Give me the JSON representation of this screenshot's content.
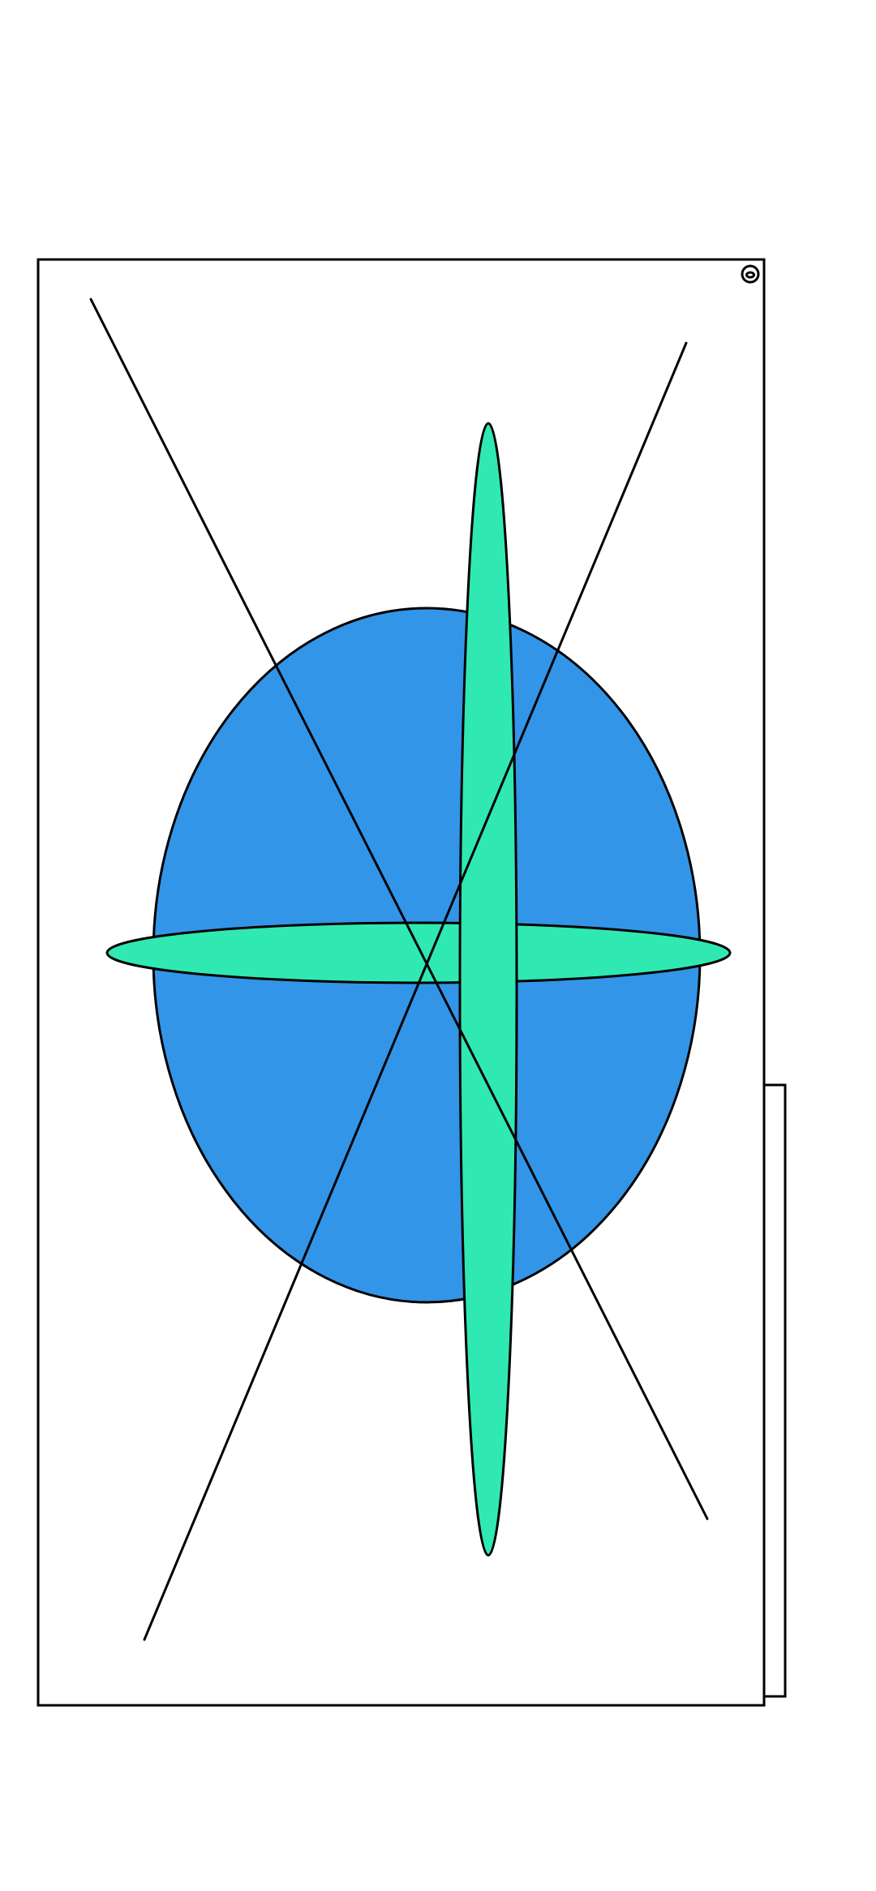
{
  "drawing": {
    "colors": {
      "background": "#ffffff",
      "stroke": "#000000",
      "large_ellipse_fill": "#3395e8",
      "thin_ellipse_fill": "#30e8b2"
    },
    "icons": {
      "corner_target": "target-icon"
    }
  }
}
